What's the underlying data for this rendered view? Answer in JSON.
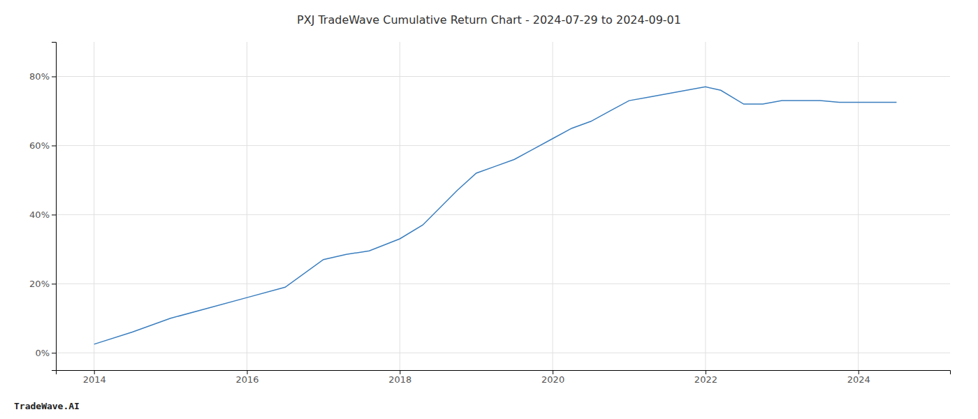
{
  "chart_data": {
    "type": "line",
    "title": "PXJ TradeWave Cumulative Return Chart - 2024-07-29 to 2024-09-01",
    "annotations": [
      "TradeWave.AI"
    ],
    "x": [
      2014.0,
      2014.5,
      2015.0,
      2015.5,
      2016.0,
      2016.5,
      2017.0,
      2017.3,
      2017.6,
      2018.0,
      2018.3,
      2018.75,
      2019.0,
      2019.25,
      2019.5,
      2019.75,
      2020.0,
      2020.25,
      2020.5,
      2020.75,
      2021.0,
      2021.25,
      2021.5,
      2021.75,
      2022.0,
      2022.2,
      2022.5,
      2022.75,
      2023.0,
      2023.25,
      2023.5,
      2023.75,
      2024.0,
      2024.5
    ],
    "values": [
      2.5,
      6,
      10,
      13,
      16,
      19,
      27,
      28.5,
      29.5,
      33,
      37,
      47,
      52,
      54,
      56,
      59,
      62,
      65,
      67,
      70,
      73,
      74,
      75,
      76,
      77,
      76,
      72,
      72,
      73,
      73,
      73,
      72.5,
      72.5,
      72.5
    ],
    "color": "#3a7ebf",
    "xlim": [
      2013.5,
      2025.2
    ],
    "ylim": [
      -5,
      90
    ],
    "xticks": [
      2014,
      2016,
      2018,
      2020,
      2022,
      2024
    ],
    "yticks": [
      {
        "value": 0,
        "label": "0%"
      },
      {
        "value": 20,
        "label": "20%"
      },
      {
        "value": 40,
        "label": "40%"
      },
      {
        "value": 60,
        "label": "60%"
      },
      {
        "value": 80,
        "label": "80%"
      }
    ],
    "grid": true
  }
}
